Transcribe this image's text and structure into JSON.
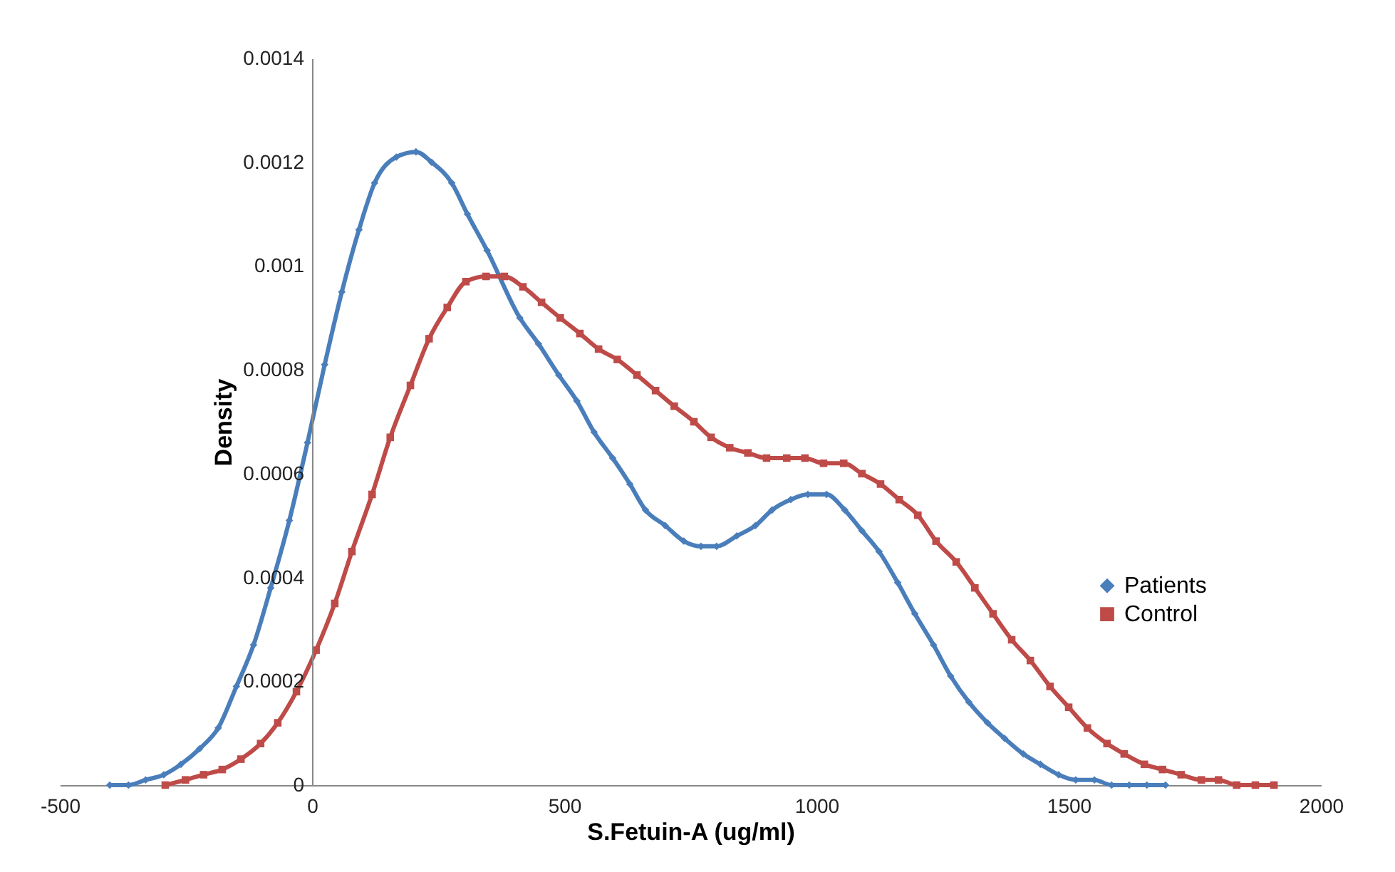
{
  "chart_data": {
    "type": "line",
    "xlabel": "S.Fetuin-A (ug/ml)",
    "ylabel": "Density",
    "xlim": [
      -500,
      2000
    ],
    "xticks": [
      -500,
      0,
      500,
      1000,
      1500,
      2000
    ],
    "ylim": [
      0,
      0.0014
    ],
    "yticks": [
      0,
      0.0002,
      0.0004,
      0.0006,
      0.0008,
      0.001,
      0.0012,
      0.0014
    ],
    "grid": false,
    "legend": "right",
    "line_style": "solid",
    "series": [
      {
        "name": "Patients",
        "color": "#4a7ebb",
        "marker": "diamond",
        "x": [
          -401,
          -364,
          -330,
          -294,
          -260,
          -223,
          -186,
          -150,
          -116,
          -82,
          -45,
          -9,
          25,
          59,
          93,
          124,
          167,
          206,
          237,
          277,
          308,
          347,
          412,
          449,
          489,
          525,
          559,
          596,
          630,
          661,
          700,
          737,
          771,
          802,
          842,
          879,
          912,
          949,
          983,
          1020,
          1056,
          1090,
          1124,
          1161,
          1195,
          1232,
          1266,
          1302,
          1339,
          1373,
          1410,
          1444,
          1480,
          1514,
          1551,
          1585,
          1620,
          1655,
          1692
        ],
        "values": [
          0,
          0,
          1e-05,
          2e-05,
          4e-05,
          7e-05,
          0.00011,
          0.00019,
          0.00027,
          0.00038,
          0.00051,
          0.00066,
          0.00081,
          0.00095,
          0.00107,
          0.00116,
          0.00121,
          0.00122,
          0.0012,
          0.00116,
          0.0011,
          0.00103,
          0.0009,
          0.00085,
          0.00079,
          0.00074,
          0.00068,
          0.00063,
          0.00058,
          0.00053,
          0.0005,
          0.00047,
          0.00046,
          0.00046,
          0.00048,
          0.0005,
          0.00053,
          0.00055,
          0.00056,
          0.00056,
          0.00053,
          0.00049,
          0.00045,
          0.00039,
          0.00033,
          0.00027,
          0.00021,
          0.00016,
          0.00012,
          9e-05,
          6e-05,
          4e-05,
          2e-05,
          1e-05,
          1e-05,
          0,
          0,
          0,
          0
        ]
      },
      {
        "name": "Control",
        "color": "#be4b48",
        "marker": "square",
        "x": [
          -291,
          -251,
          -215,
          -178,
          -141,
          -102,
          -68,
          -31,
          8,
          45,
          79,
          119,
          155,
          195,
          232,
          268,
          305,
          345,
          381,
          418,
          455,
          492,
          531,
          568,
          605,
          644,
          681,
          718,
          757,
          791,
          828,
          864,
          901,
          941,
          977,
          1014,
          1054,
          1090,
          1127,
          1164,
          1201,
          1237,
          1277,
          1314,
          1350,
          1387,
          1424,
          1463,
          1500,
          1537,
          1576,
          1610,
          1650,
          1686,
          1723,
          1763,
          1797,
          1833,
          1870,
          1907
        ],
        "values": [
          0,
          1e-05,
          2e-05,
          3e-05,
          5e-05,
          8e-05,
          0.00012,
          0.00018,
          0.00026,
          0.00035,
          0.00045,
          0.00056,
          0.00067,
          0.00077,
          0.00086,
          0.00092,
          0.00097,
          0.00098,
          0.00098,
          0.00096,
          0.00093,
          0.0009,
          0.00087,
          0.00084,
          0.00082,
          0.00079,
          0.00076,
          0.00073,
          0.0007,
          0.00067,
          0.00065,
          0.00064,
          0.00063,
          0.00063,
          0.00063,
          0.00062,
          0.00062,
          0.0006,
          0.00058,
          0.00055,
          0.00052,
          0.00047,
          0.00043,
          0.00038,
          0.00033,
          0.00028,
          0.00024,
          0.00019,
          0.00015,
          0.00011,
          8e-05,
          6e-05,
          4e-05,
          3e-05,
          2e-05,
          1e-05,
          1e-05,
          0,
          0,
          0
        ]
      }
    ]
  }
}
